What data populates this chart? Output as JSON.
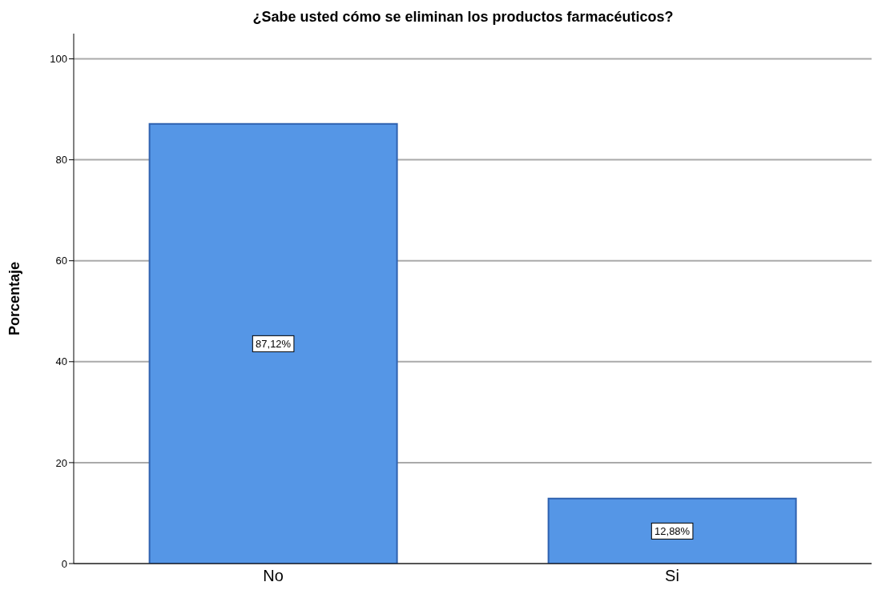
{
  "chart_data": {
    "type": "bar",
    "title": "¿Sabe usted cómo se eliminan los productos farmacéuticos?",
    "ylabel": "Porcentaje",
    "categories": [
      "No",
      "Si"
    ],
    "values": [
      87.12,
      12.88
    ],
    "value_labels": [
      "87,12%",
      "12,88%"
    ],
    "color": "#5596e6",
    "ylim": [
      0,
      105
    ],
    "yticks": [
      0,
      20,
      40,
      60,
      80,
      100
    ],
    "grid": "y"
  }
}
